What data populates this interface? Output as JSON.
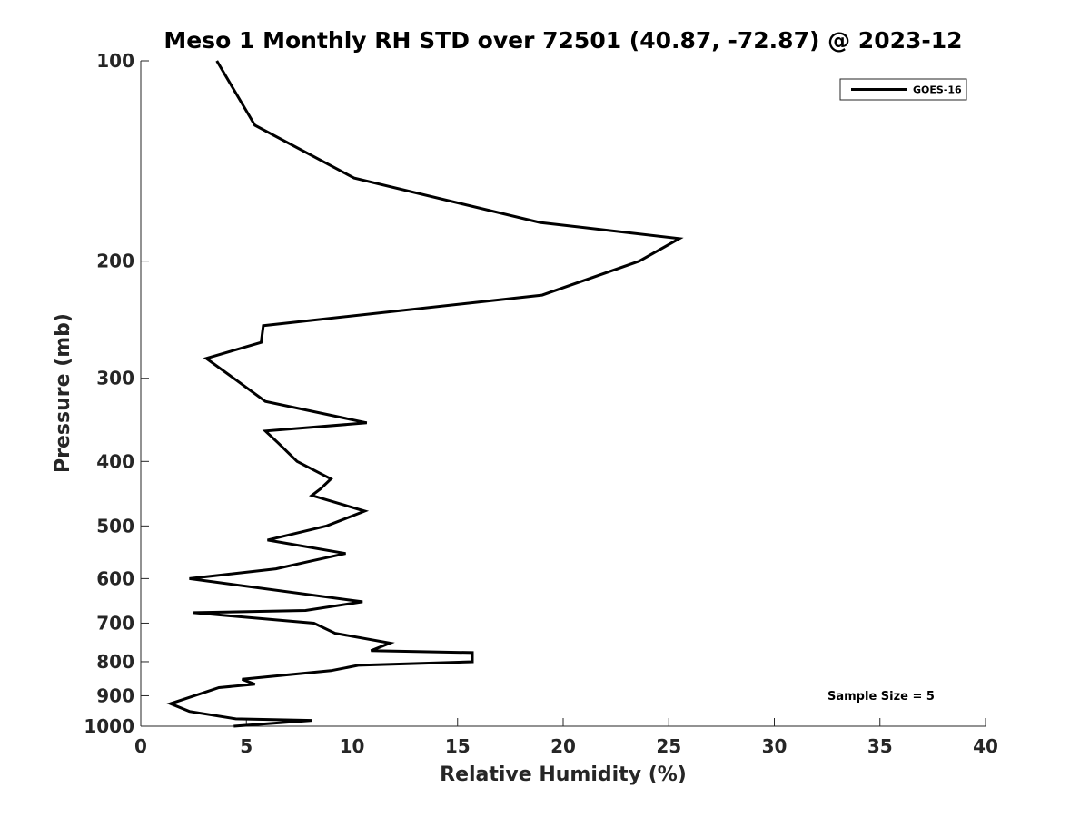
{
  "chart_data": {
    "type": "line",
    "title": "Meso 1 Monthly RH STD over 72501 (40.87, -72.87) @ 2023-12",
    "xlabel": "Relative Humidity (%)",
    "ylabel": "Pressure (mb)",
    "xlim": [
      0,
      40
    ],
    "ylim": [
      100,
      1000
    ],
    "y_scale": "log",
    "y_reversed": true,
    "x_ticks": [
      0,
      5,
      10,
      15,
      20,
      25,
      30,
      35,
      40
    ],
    "y_ticks": [
      100,
      200,
      300,
      400,
      500,
      600,
      700,
      800,
      900,
      1000
    ],
    "grid": false,
    "legend_position": "top-right",
    "annotation": "Sample Size = 5",
    "series": [
      {
        "name": "GOES-16",
        "color": "#000000",
        "points": [
          [
            3.6,
            100
          ],
          [
            5.4,
            125
          ],
          [
            10.1,
            150
          ],
          [
            18.9,
            175
          ],
          [
            25.5,
            185
          ],
          [
            23.6,
            200
          ],
          [
            19.0,
            225
          ],
          [
            5.8,
            250
          ],
          [
            5.7,
            265
          ],
          [
            3.1,
            280
          ],
          [
            4.4,
            300
          ],
          [
            5.9,
            325
          ],
          [
            10.7,
            350
          ],
          [
            5.9,
            360
          ],
          [
            6.5,
            375
          ],
          [
            7.4,
            400
          ],
          [
            9.0,
            425
          ],
          [
            8.5,
            440
          ],
          [
            8.1,
            450
          ],
          [
            10.6,
            475
          ],
          [
            8.8,
            500
          ],
          [
            6.0,
            525
          ],
          [
            9.7,
            550
          ],
          [
            8.0,
            565
          ],
          [
            6.4,
            580
          ],
          [
            2.3,
            600
          ],
          [
            10.5,
            650
          ],
          [
            7.8,
            670
          ],
          [
            2.5,
            675
          ],
          [
            8.2,
            700
          ],
          [
            9.2,
            725
          ],
          [
            11.8,
            750
          ],
          [
            10.9,
            770
          ],
          [
            15.7,
            775
          ],
          [
            15.7,
            800
          ],
          [
            10.3,
            810
          ],
          [
            9.0,
            825
          ],
          [
            4.8,
            850
          ],
          [
            5.4,
            865
          ],
          [
            3.7,
            875
          ],
          [
            1.4,
            925
          ],
          [
            2.3,
            950
          ],
          [
            4.5,
            975
          ],
          [
            8.1,
            980
          ],
          [
            4.4,
            1000
          ]
        ]
      }
    ]
  }
}
